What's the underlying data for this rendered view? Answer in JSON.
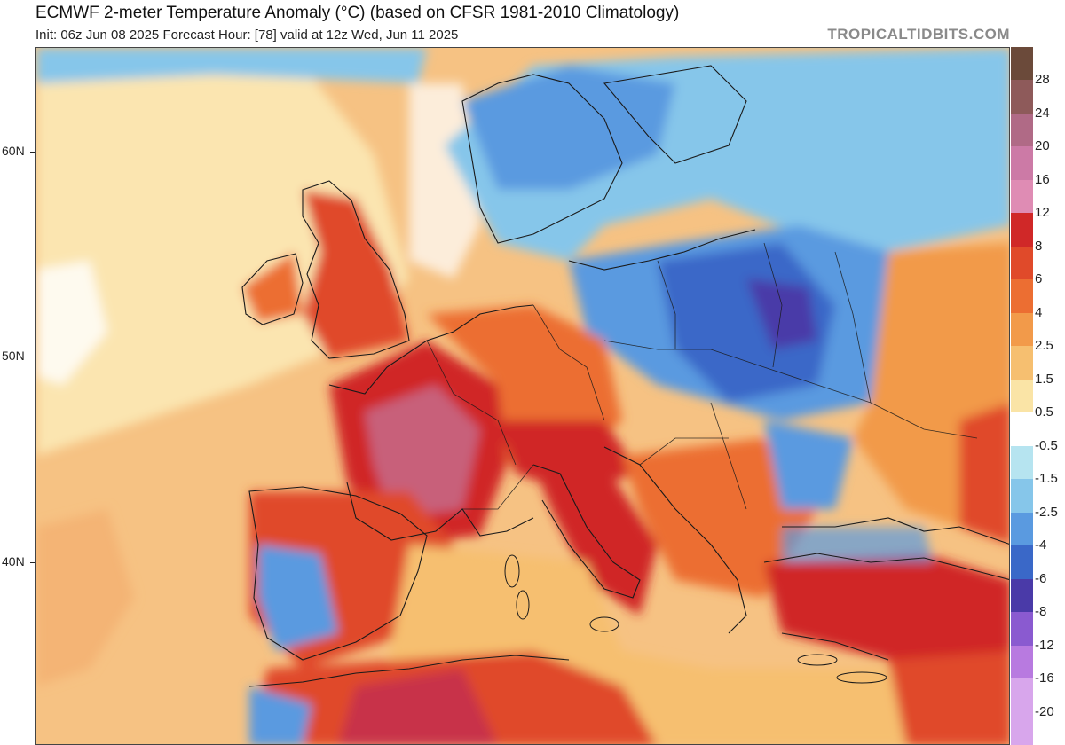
{
  "header": {
    "title": "ECMWF 2-meter Temperature Anomaly (°C) (based on CFSR 1981-2010 Climatology)",
    "subtitle": "Init: 06z Jun 08 2025   Forecast Hour: [78]   valid at 12z Wed, Jun 11 2025",
    "brand": "TROPICALTIDBITS.COM"
  },
  "lat_axis": {
    "labels": [
      "60N",
      "50N",
      "40N"
    ]
  },
  "colorbar": {
    "levels": [
      "28",
      "24",
      "20",
      "16",
      "12",
      "8",
      "6",
      "4",
      "2.5",
      "1.5",
      "0.5",
      "-0.5",
      "-1.5",
      "-2.5",
      "-4",
      "-6",
      "-8",
      "-12",
      "-16",
      "-20"
    ],
    "colors": [
      "#6b4a3a",
      "#8e5a5a",
      "#b06a86",
      "#cc7aa6",
      "#df8cb4",
      "#d02828",
      "#e04a2a",
      "#ec6e32",
      "#f29a4a",
      "#f6bf70",
      "#fae4a6",
      "#ffffff",
      "#b6e4f0",
      "#86c6ea",
      "#5a9ae0",
      "#3a68c8",
      "#4a3aa8",
      "#8a5ad0",
      "#b87ae0",
      "#d8a6ec"
    ]
  },
  "map": {
    "colors": {
      "ocean_warm": "#f6c283",
      "ocean_pale": "#fbe5b0",
      "near_zero": "#ffffff",
      "hot": "#e04a2a",
      "very_hot": "#c8304a",
      "cold": "#5a9ae0",
      "very_cold": "#3a68c8",
      "border": "#1a1a1a"
    }
  }
}
